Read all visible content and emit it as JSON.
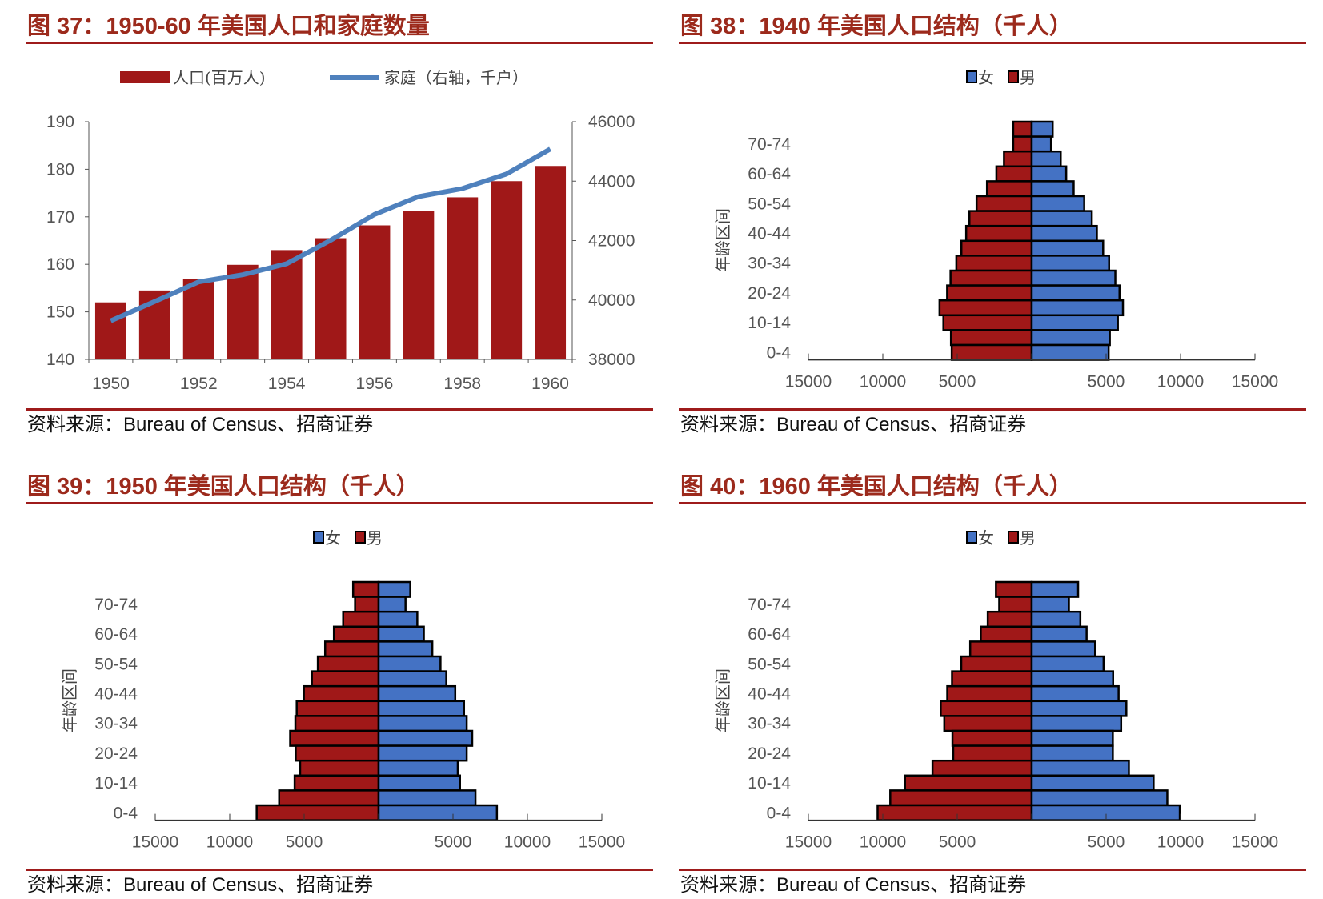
{
  "colors": {
    "title": "#9c2a1c",
    "rule": "#9e1b1b",
    "male": "#a01818",
    "female": "#4472c4",
    "line": "#4f81bd"
  },
  "panels": [
    {
      "title": "图 37：1950-60 年美国人口和家庭数量",
      "source": "资料来源：Bureau of Census、招商证券",
      "chart_data": {
        "type": "bar+line",
        "categories": [
          1950,
          1951,
          1952,
          1953,
          1954,
          1955,
          1956,
          1957,
          1958,
          1959,
          1960
        ],
        "x_tick_labels": [
          "1950",
          "1952",
          "1954",
          "1956",
          "1958",
          "1960"
        ],
        "series": [
          {
            "name": "人口(百万人)",
            "type": "bar",
            "axis": "left",
            "values": [
              152.0,
              154.5,
              157.0,
              159.9,
              163.0,
              165.5,
              168.2,
              171.3,
              174.1,
              177.5,
              180.7
            ]
          },
          {
            "name": "家庭（右轴，千户）",
            "type": "line",
            "axis": "right",
            "values": [
              39300,
              39950,
              40610,
              40850,
              41220,
              42010,
              42880,
              43480,
              43750,
              44240,
              45080
            ]
          }
        ],
        "ylim_left": [
          140,
          190
        ],
        "yticks_left": [
          "140",
          "150",
          "160",
          "170",
          "180",
          "190"
        ],
        "ylim_right": [
          38000,
          46000
        ],
        "yticks_right": [
          "38000",
          "40000",
          "42000",
          "44000",
          "46000"
        ],
        "legend": "top",
        "grid": false
      }
    },
    {
      "title": "图 38：1940 年美国人口结构（千人）",
      "source": "资料来源：Bureau of Census、招商证券",
      "chart_data": {
        "type": "bar",
        "orientation": "horizontal-pyramid",
        "ylabel": "年龄区间",
        "legend_labels": [
          "女",
          "男"
        ],
        "age_groups": [
          "75+",
          "70-74",
          "65-69",
          "60-64",
          "55-59",
          "50-54",
          "45-49",
          "40-44",
          "35-39",
          "30-34",
          "25-29",
          "20-24",
          "15-19",
          "10-14",
          "5-9",
          "0-4"
        ],
        "age_tick_labels": [
          "70-74",
          "60-64",
          "50-54",
          "40-44",
          "30-34",
          "20-24",
          "10-14",
          "0-4"
        ],
        "x_tick_labels": [
          "15000",
          "10000",
          "5000",
          "",
          "5000",
          "10000",
          "15000"
        ],
        "xlim": [
          -15000,
          15000
        ],
        "male": [
          1240,
          1240,
          1860,
          2370,
          3000,
          3700,
          4180,
          4400,
          4720,
          5060,
          5450,
          5680,
          6190,
          5930,
          5420,
          5370
        ],
        "female": [
          1410,
          1300,
          1950,
          2320,
          2820,
          3530,
          4040,
          4380,
          4800,
          5200,
          5620,
          5900,
          6130,
          5790,
          5250,
          5170
        ]
      }
    },
    {
      "title": "图 39：1950 年美国人口结构（千人）",
      "source": "资料来源：Bureau of Census、招商证券",
      "chart_data": {
        "type": "bar",
        "orientation": "horizontal-pyramid",
        "ylabel": "年龄区间",
        "legend_labels": [
          "女",
          "男"
        ],
        "age_groups": [
          "75+",
          "70-74",
          "65-69",
          "60-64",
          "55-59",
          "50-54",
          "45-49",
          "40-44",
          "35-39",
          "30-34",
          "25-29",
          "20-24",
          "15-19",
          "10-14",
          "5-9",
          "0-4"
        ],
        "age_tick_labels": [
          "70-74",
          "60-64",
          "50-54",
          "40-44",
          "30-34",
          "20-24",
          "10-14",
          "0-4"
        ],
        "x_tick_labels": [
          "15000",
          "10000",
          "5000",
          "",
          "5000",
          "10000",
          "15000"
        ],
        "xlim": [
          -15000,
          15000
        ],
        "male": [
          1710,
          1580,
          2380,
          3000,
          3590,
          4080,
          4480,
          5020,
          5500,
          5590,
          5940,
          5570,
          5270,
          5640,
          6680,
          8190
        ],
        "female": [
          2130,
          1810,
          2600,
          3040,
          3610,
          4160,
          4550,
          5150,
          5740,
          5920,
          6290,
          5920,
          5320,
          5470,
          6510,
          7950
        ]
      }
    },
    {
      "title": "图 40：1960 年美国人口结构（千人）",
      "source": "资料来源：Bureau of Census、招商证券",
      "chart_data": {
        "type": "bar",
        "orientation": "horizontal-pyramid",
        "ylabel": "年龄区间",
        "legend_labels": [
          "女",
          "男"
        ],
        "age_groups": [
          "75+",
          "70-74",
          "65-69",
          "60-64",
          "55-59",
          "50-54",
          "45-49",
          "40-44",
          "35-39",
          "30-34",
          "25-29",
          "20-24",
          "15-19",
          "10-14",
          "5-9",
          "0-4"
        ],
        "age_tick_labels": [
          "70-74",
          "60-64",
          "50-54",
          "40-44",
          "30-34",
          "20-24",
          "10-14",
          "0-4"
        ],
        "x_tick_labels": [
          "15000",
          "10000",
          "5000",
          "",
          "5000",
          "10000",
          "15000"
        ],
        "xlim": [
          -15000,
          15000
        ],
        "male": [
          2400,
          2180,
          2950,
          3420,
          4130,
          4730,
          5350,
          5670,
          6110,
          5870,
          5320,
          5270,
          6660,
          8510,
          9500,
          10350
        ],
        "female": [
          3120,
          2500,
          3270,
          3690,
          4260,
          4830,
          5470,
          5840,
          6360,
          6010,
          5450,
          5450,
          6530,
          8190,
          9110,
          9950
        ]
      }
    }
  ]
}
